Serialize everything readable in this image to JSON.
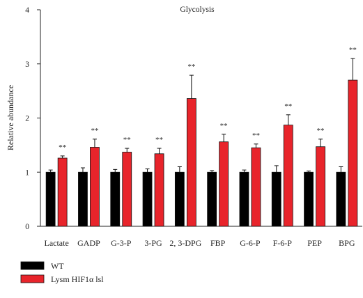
{
  "chart_data": {
    "type": "bar",
    "title": "Glycolysis",
    "xlabel": "",
    "ylabel": "Relative abundance",
    "ylim": [
      0,
      4
    ],
    "yticks": [
      "0",
      "1",
      "2",
      "3",
      "4"
    ],
    "categories": [
      "Lactate",
      "GADP",
      "G-3-P",
      "3-PG",
      "2, 3-DPG",
      "FBP",
      "G-6-P",
      "F-6-P",
      "PEP",
      "BPG"
    ],
    "series": [
      {
        "name": "WT",
        "color": "#000000",
        "values": [
          1.0,
          1.0,
          1.0,
          1.0,
          1.0,
          1.0,
          1.0,
          1.0,
          1.0,
          1.0
        ],
        "errors": [
          0.04,
          0.08,
          0.05,
          0.06,
          0.1,
          0.03,
          0.04,
          0.12,
          0.02,
          0.1
        ]
      },
      {
        "name": "Lysm HIF1α lsl",
        "color": "#e8242b",
        "values": [
          1.26,
          1.46,
          1.37,
          1.34,
          2.36,
          1.56,
          1.45,
          1.87,
          1.47,
          2.7
        ],
        "errors": [
          0.04,
          0.15,
          0.07,
          0.1,
          0.43,
          0.14,
          0.07,
          0.19,
          0.14,
          0.4
        ]
      }
    ],
    "annotations": [
      "**",
      "**",
      "**",
      "**",
      "**",
      "**",
      "**",
      "**",
      "**",
      "**"
    ],
    "legend_position": "bottom-left",
    "grid": false
  }
}
